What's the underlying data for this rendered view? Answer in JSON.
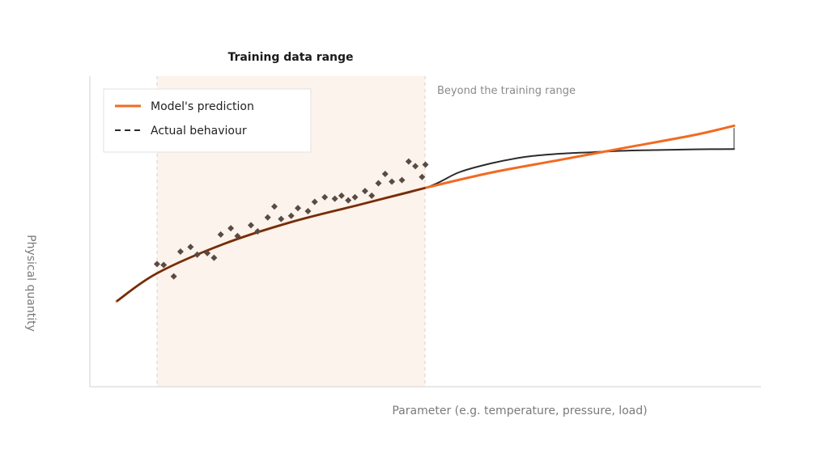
{
  "chart_data": {
    "type": "scatter",
    "title": "",
    "xlabel": "Parameter (e.g. temperature, pressure, load)",
    "ylabel": "Physical quantity",
    "xlim": [
      0,
      10
    ],
    "ylim": [
      0,
      10
    ],
    "grid": false,
    "legend": {
      "placement": "top-left"
    },
    "training_range": {
      "label": "Training data range",
      "x": [
        1,
        5
      ]
    },
    "annotation": "Beyond the training range",
    "series": [
      {
        "name": "Model's prediction",
        "kind": "line",
        "color": "#f26a21",
        "x": [
          0.4,
          1,
          2,
          3,
          4,
          5,
          6,
          7,
          8,
          9,
          9.6
        ],
        "y": [
          2.75,
          3.65,
          4.6,
          5.3,
          5.85,
          6.4,
          6.9,
          7.3,
          7.7,
          8.1,
          8.4
        ]
      },
      {
        "name": "Actual behaviour",
        "kind": "line",
        "dash": "dashed",
        "color": "#2b2b2b",
        "x": [
          0.4,
          1,
          2,
          3,
          4,
          5,
          5.5,
          6,
          6.5,
          7,
          7.5,
          8,
          8.5,
          9,
          9.6
        ],
        "y": [
          2.75,
          3.65,
          4.6,
          5.3,
          5.85,
          6.4,
          6.9,
          7.2,
          7.4,
          7.5,
          7.55,
          7.6,
          7.62,
          7.64,
          7.65
        ]
      },
      {
        "name": "",
        "kind": "scatter",
        "color": "#5a4a44",
        "x": [
          1.0,
          1.1,
          1.25,
          1.35,
          1.5,
          1.6,
          1.75,
          1.85,
          1.95,
          2.1,
          2.2,
          2.4,
          2.5,
          2.65,
          2.75,
          2.85,
          3.0,
          3.1,
          3.25,
          3.35,
          3.5,
          3.65,
          3.75,
          3.85,
          3.95,
          4.1,
          4.2,
          4.3,
          4.4,
          4.5,
          4.65,
          4.75,
          4.85,
          4.95,
          5.0
        ],
        "y": [
          3.95,
          3.92,
          3.55,
          4.35,
          4.5,
          4.25,
          4.3,
          4.15,
          4.9,
          5.1,
          4.85,
          5.2,
          5.0,
          5.45,
          5.8,
          5.4,
          5.5,
          5.75,
          5.65,
          5.95,
          6.1,
          6.05,
          6.15,
          6.0,
          6.1,
          6.3,
          6.15,
          6.55,
          6.85,
          6.6,
          6.65,
          7.25,
          7.1,
          6.75,
          7.15
        ]
      }
    ]
  }
}
